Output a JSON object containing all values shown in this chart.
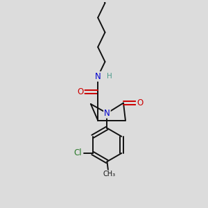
{
  "background_color": "#dcdcdc",
  "atom_colors": {
    "N": "#0000cc",
    "O": "#cc0000",
    "Cl": "#2a7a2a",
    "C": "#000000",
    "H": "#4a9a8a"
  },
  "font_size_atoms": 8.5,
  "fig_size": [
    3.0,
    3.0
  ],
  "dpi": 100
}
